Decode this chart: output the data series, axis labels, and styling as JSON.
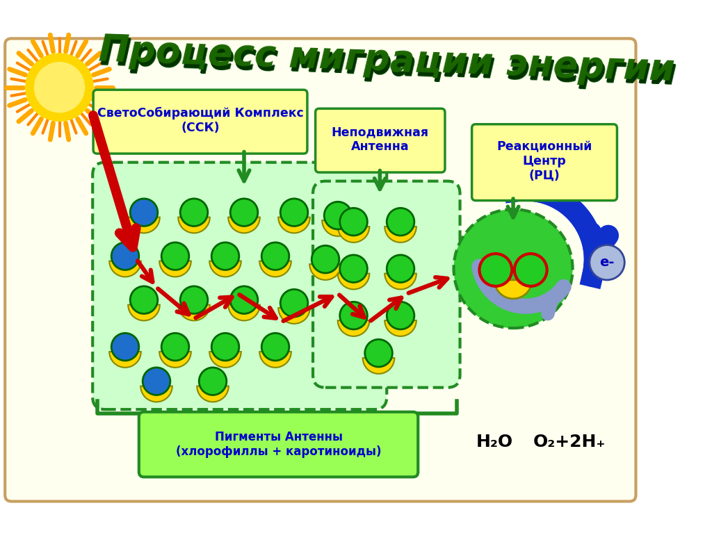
{
  "title": "Процесс миграции энергии",
  "bg_color": "#ffffff",
  "main_bg": "#fffff0",
  "label_ssk": "СветоСобирающий Комплекс\n(ССК)",
  "label_antenna": "Неподвижная\nАнтенна",
  "label_rc": "Реакционный\nЦентр\n(РЦ)",
  "label_pigments": "Пигменты Антенны\n(хлорофиллы + каротиноиды)",
  "label_h2o": "H₂O",
  "label_o2": "O₂+2H₊",
  "label_electron": "е-",
  "outer_rect_color": "#c8a060",
  "inner_bg_color": "#ccffcc",
  "dashed_color": "#228B22",
  "box_label_bg": "#ffff99",
  "box_label_border": "#228B22",
  "green_arrow_color": "#228B22",
  "red_arrow_color": "#cc0000",
  "blue_dark": "#1030cc",
  "blue_light": "#8899cc",
  "yellow_color": "#ffd700",
  "green_circle_color": "#22cc22",
  "blue_circle_color": "#1e6fcc",
  "pigment_box_bg": "#99ff55",
  "pigment_box_border": "#228B22",
  "rc_green": "#22cc22"
}
